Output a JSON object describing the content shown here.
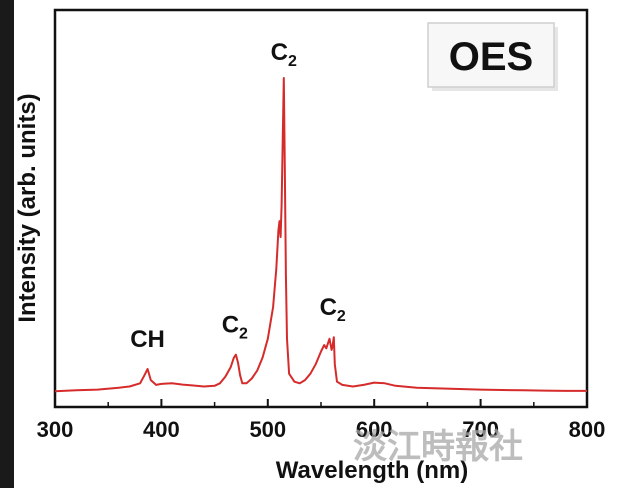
{
  "chart_data": {
    "type": "line",
    "badge": "OES",
    "xlabel": "Wavelength (nm)",
    "ylabel": "Intensity (arb. units)",
    "xlim": [
      300,
      800
    ],
    "ylim": [
      0,
      100
    ],
    "x_ticks": [
      "300",
      "400",
      "500",
      "600",
      "700",
      "800"
    ],
    "y_ticks_labeled": false,
    "grid": false,
    "legend": "none",
    "series_color": "#d62b2b",
    "series": [
      {
        "x": [
          300,
          320,
          340,
          360,
          370,
          380,
          384,
          387,
          390,
          395,
          400,
          410,
          420,
          430,
          440,
          450,
          455,
          460,
          465,
          468,
          470,
          472,
          474,
          476,
          480,
          485,
          490,
          495,
          500,
          505,
          508,
          510,
          511,
          512,
          513,
          514,
          515,
          516,
          517,
          518,
          520,
          525,
          530,
          535,
          540,
          545,
          550,
          553,
          555,
          557,
          558,
          560,
          561,
          562,
          563,
          565,
          570,
          580,
          590,
          600,
          610,
          620,
          640,
          660,
          680,
          700,
          720,
          740,
          760,
          780,
          800
        ],
        "y": [
          1.5,
          1.8,
          2.0,
          2.6,
          3.0,
          4.0,
          6.5,
          8.5,
          5.0,
          3.5,
          3.8,
          4.0,
          3.6,
          3.3,
          3.0,
          3.2,
          4.0,
          6.0,
          9.0,
          12.0,
          13.0,
          10.5,
          6.5,
          4.0,
          4.0,
          5.5,
          8.0,
          12.0,
          18.0,
          28.0,
          40.0,
          52.0,
          55.0,
          50.0,
          60.0,
          80.0,
          100.0,
          72.0,
          38.0,
          18.0,
          7.0,
          4.5,
          4.0,
          5.0,
          7.0,
          10.0,
          14.0,
          16.0,
          15.0,
          17.0,
          18.0,
          14.5,
          16.0,
          18.5,
          10.0,
          4.5,
          3.5,
          3.0,
          3.5,
          4.2,
          4.0,
          3.2,
          2.6,
          2.4,
          2.2,
          2.0,
          1.9,
          1.8,
          1.7,
          1.6,
          1.6
        ]
      }
    ],
    "annotations": [
      {
        "text": "CH",
        "sub": "",
        "x": 387,
        "y": 8.5
      },
      {
        "text": "C",
        "sub": "2",
        "x": 469,
        "y": 13.0
      },
      {
        "text": "C",
        "sub": "2",
        "x": 515,
        "y": 100.0
      },
      {
        "text": "C",
        "sub": "2",
        "x": 561,
        "y": 18.5
      }
    ]
  },
  "watermark": "淡江時報社"
}
